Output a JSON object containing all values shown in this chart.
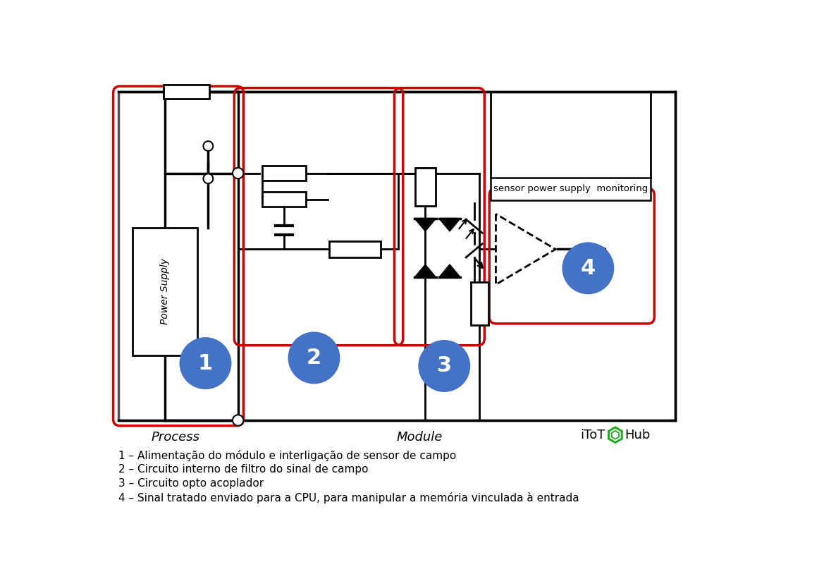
{
  "background_color": "#ffffff",
  "legend_items": [
    "1 – Alimentação do módulo e interligação de sensor de campo",
    "2 – Circuito interno de filtro do sinal de campo",
    "3 – Circuito opto acoplador",
    "4 – Sinal tratado enviado para a CPU, para manipular a memória vinculada à entrada"
  ],
  "process_label": "Process",
  "module_label": "Module",
  "power_supply_label": "Power Supply",
  "sensor_monitor_label": "sensor power supply  monitoring",
  "circle_color": "#4472c4",
  "circle_numbers": [
    "1",
    "2",
    "3",
    "4"
  ],
  "red_color": "#cc0000",
  "black_color": "#000000",
  "gray_color": "#555555"
}
